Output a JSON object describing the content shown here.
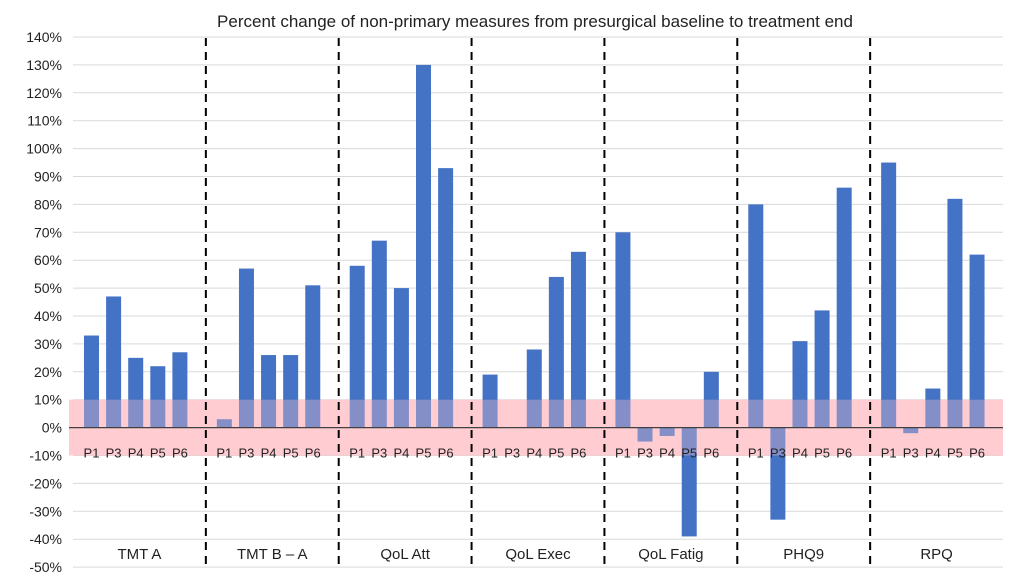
{
  "chart_data": {
    "type": "bar",
    "title": "Percent change of non-primary measures from presurgical baseline to treatment end",
    "xlabel": "",
    "ylabel": "",
    "ylim": [
      -50,
      140
    ],
    "y_ticks": [
      "140%",
      "130%",
      "120%",
      "110%",
      "100%",
      "90%",
      "80%",
      "70%",
      "60%",
      "50%",
      "40%",
      "30%",
      "20%",
      "10%",
      "0%",
      "-10%",
      "-20%",
      "-30%",
      "-40%",
      "-50%"
    ],
    "y_tick_values": [
      140,
      130,
      120,
      110,
      100,
      90,
      80,
      70,
      60,
      50,
      40,
      30,
      20,
      10,
      0,
      -10,
      -20,
      -30,
      -40,
      -50
    ],
    "categories": [
      "P1",
      "P3",
      "P4",
      "P5",
      "P6"
    ],
    "bar_color": "#4472C4",
    "band": {
      "from": -10,
      "to": 10,
      "color": "#FFC7CE"
    },
    "groups": [
      {
        "name": "TMT A",
        "values": [
          33,
          47,
          25,
          22,
          27
        ]
      },
      {
        "name": "TMT B – A",
        "values": [
          3,
          57,
          26,
          26,
          51
        ]
      },
      {
        "name": "QoL Att",
        "values": [
          58,
          67,
          50,
          130,
          93
        ]
      },
      {
        "name": "QoL Exec",
        "values": [
          19,
          0,
          28,
          54,
          63
        ]
      },
      {
        "name": "QoL Fatig",
        "values": [
          70,
          -5,
          -3,
          -39,
          20
        ]
      },
      {
        "name": "PHQ9",
        "values": [
          80,
          -33,
          31,
          42,
          86
        ]
      },
      {
        "name": "RPQ",
        "values": [
          95,
          -2,
          14,
          82,
          62
        ]
      }
    ]
  }
}
